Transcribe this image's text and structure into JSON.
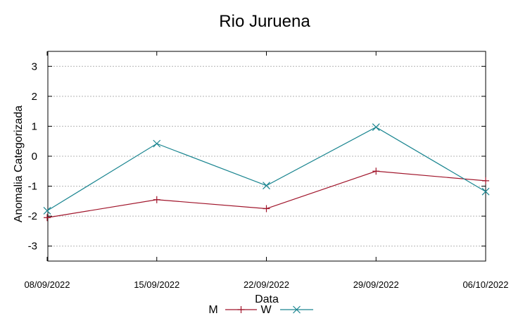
{
  "chart_data": {
    "type": "line",
    "title": "Rio Juruena",
    "xlabel": "Data",
    "ylabel": "Anomalia Categorizada",
    "categories": [
      "08/09/2022",
      "15/09/2022",
      "22/09/2022",
      "29/09/2022",
      "06/10/2022"
    ],
    "yticks": [
      "3",
      "2",
      "1",
      "0",
      "-1",
      "-2",
      "-3"
    ],
    "ylim": [
      -3.5,
      3.5
    ],
    "grid": true,
    "legend_position": "bottom-center",
    "series": [
      {
        "name": "M",
        "color": "#a0142a",
        "marker": "plus",
        "values": [
          -2.05,
          -1.45,
          -1.75,
          -0.5,
          -0.82
        ]
      },
      {
        "name": "W",
        "color": "#1a8590",
        "marker": "cross",
        "values": [
          -1.82,
          0.42,
          -0.98,
          0.97,
          -1.18
        ]
      }
    ]
  }
}
